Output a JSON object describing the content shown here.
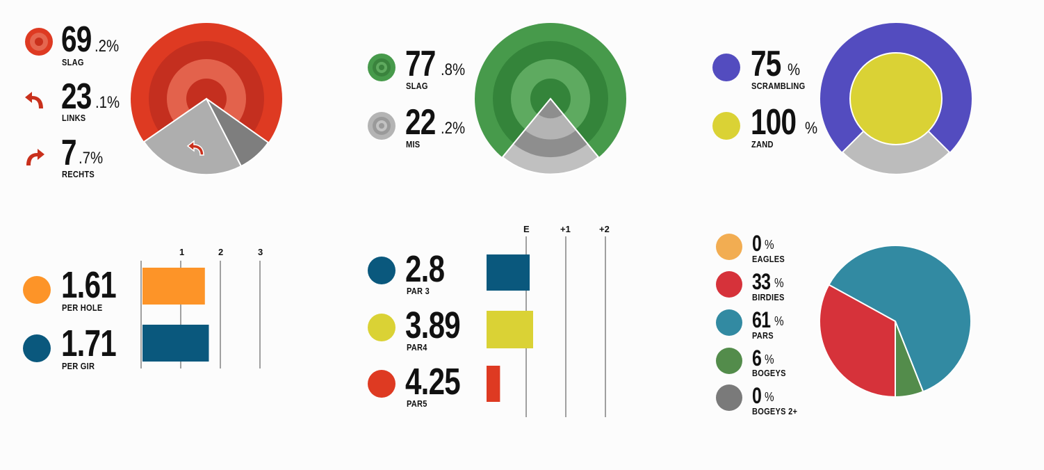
{
  "colors": {
    "red": "#de3a22",
    "green": "#479a4b",
    "purple": "#534cbf",
    "yellow": "#dad235",
    "orange": "#fd9428",
    "navy": "#0a587d",
    "grey_light": "#aeaeae",
    "grey_mid": "#7e7e7e",
    "pie_eagles": "#f2ad52",
    "pie_birdies": "#d6323a",
    "pie_pars": "#328aa2",
    "pie_bogeys": "#538c4b",
    "pie_bogeys2": "#7a7a7a"
  },
  "panels": {
    "drives": {
      "items": [
        {
          "int": "69",
          "dec": ".2%",
          "label": "SLAG",
          "icon": "target-icon"
        },
        {
          "int": "23",
          "dec": ".1%",
          "label": "LINKS",
          "icon": "arrow-left-icon"
        },
        {
          "int": "7",
          "dec": ".7%",
          "label": "RECHTS",
          "icon": "arrow-right-icon"
        }
      ]
    },
    "greens": {
      "items": [
        {
          "int": "77",
          "dec": ".8%",
          "label": "SLAG",
          "icon": "target-icon"
        },
        {
          "int": "22",
          "dec": ".2%",
          "label": "MIS",
          "icon": "target-grey-icon"
        }
      ]
    },
    "scrambling": {
      "items": [
        {
          "int": "75",
          "dec": "%",
          "label": "SCRAMBLING"
        },
        {
          "int": "100",
          "dec": "%",
          "label": "ZAND"
        }
      ]
    },
    "putts": {
      "ticks": [
        "1",
        "2",
        "3"
      ],
      "items": [
        {
          "value": "1.61",
          "label": "PER HOLE"
        },
        {
          "value": "1.71",
          "label": "PER GIR"
        }
      ]
    },
    "par_scoring": {
      "ticks": [
        "E",
        "+1",
        "+2"
      ],
      "items": [
        {
          "value": "2.8",
          "label": "PAR 3"
        },
        {
          "value": "3.89",
          "label": "PAR4"
        },
        {
          "value": "4.25",
          "label": "PAR5"
        }
      ]
    },
    "score_dist": {
      "items": [
        {
          "int": "0",
          "dec": "%",
          "label": "EAGLES"
        },
        {
          "int": "33",
          "dec": "%",
          "label": "BIRDIES"
        },
        {
          "int": "61",
          "dec": "%",
          "label": "PARS"
        },
        {
          "int": "6",
          "dec": "%",
          "label": "BOGEYS"
        },
        {
          "int": "0",
          "dec": "%",
          "label": "BOGEYS 2+"
        }
      ]
    }
  },
  "chart_data": [
    {
      "type": "pie",
      "categories": [
        "SLAG",
        "LINKS",
        "RECHTS"
      ],
      "values": [
        69.2,
        23.1,
        7.7
      ]
    },
    {
      "type": "pie",
      "categories": [
        "SLAG",
        "MIS"
      ],
      "values": [
        77.8,
        22.2
      ]
    },
    {
      "type": "pie",
      "categories": [
        "SCRAMBLING",
        "ZAND"
      ],
      "values": [
        75,
        100
      ]
    },
    {
      "type": "bar",
      "categories": [
        "PER HOLE",
        "PER GIR"
      ],
      "values": [
        1.61,
        1.71
      ],
      "x_ticks": [
        "1",
        "2",
        "3"
      ],
      "xlim": [
        0,
        3
      ]
    },
    {
      "type": "bar",
      "categories": [
        "PAR 3",
        "PAR4",
        "PAR5"
      ],
      "values": [
        2.8,
        3.89,
        4.25
      ],
      "x_ticks": [
        "E",
        "+1",
        "+2"
      ]
    },
    {
      "type": "pie",
      "categories": [
        "EAGLES",
        "BIRDIES",
        "PARS",
        "BOGEYS",
        "BOGEYS 2+"
      ],
      "values": [
        0,
        33,
        61,
        6,
        0
      ]
    }
  ]
}
